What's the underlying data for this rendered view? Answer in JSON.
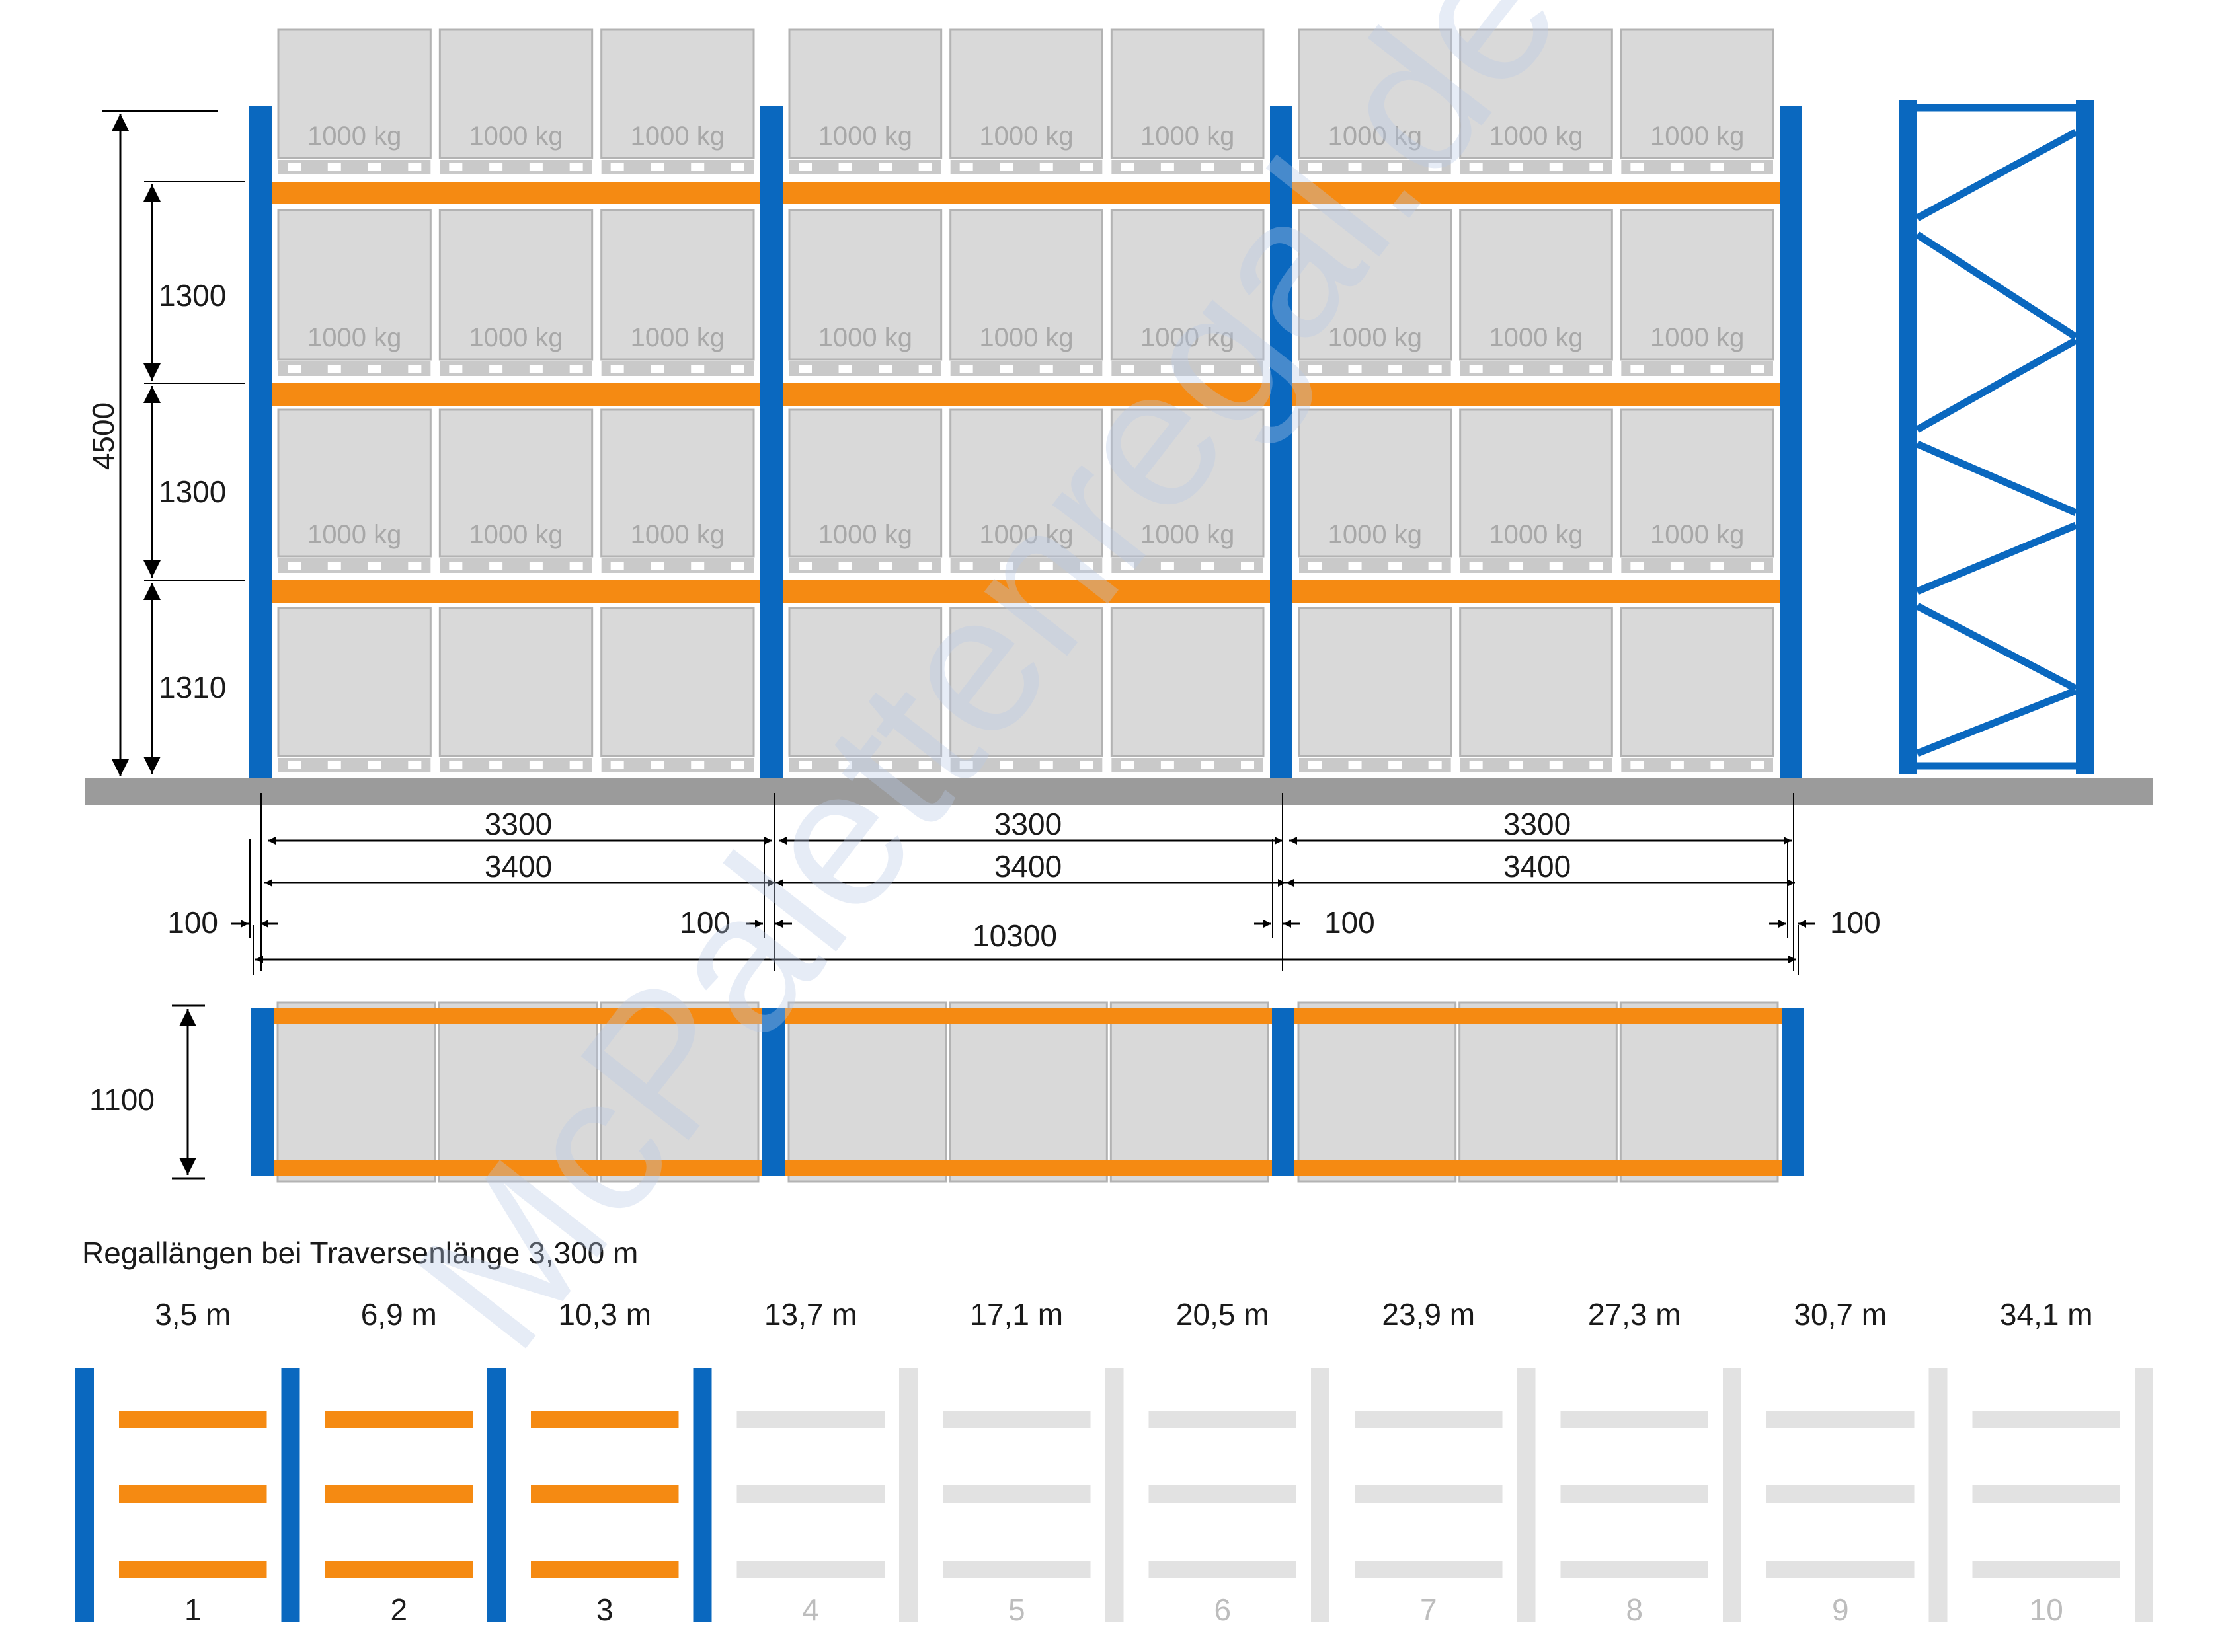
{
  "colors": {
    "upright": "#0a68bf",
    "beam": "#f58a12",
    "pallet": "#d9d9d9",
    "pallet_border": "#b3b3b3",
    "floor": "#9b9b9b",
    "inactive": "#e2e2e2"
  },
  "watermark": "McPalettenregal.de",
  "load_label": "1000 kg",
  "elevation": {
    "total_height": "4500",
    "level_heights": [
      "1300",
      "1300",
      "1310"
    ],
    "beam_lengths": [
      "3300",
      "3300",
      "3300"
    ],
    "bay_widths": [
      "3400",
      "3400",
      "3400"
    ],
    "upright_widths": [
      "100",
      "100",
      "100",
      "100"
    ],
    "total_length": "10300"
  },
  "plan": {
    "depth": "1100"
  },
  "lengths_section": {
    "title": "Regallängen bei Traversenlänge 3,300 m",
    "items": [
      {
        "length": "3,5 m",
        "number": "1",
        "active": true
      },
      {
        "length": "6,9 m",
        "number": "2",
        "active": true
      },
      {
        "length": "10,3 m",
        "number": "3",
        "active": true
      },
      {
        "length": "13,7 m",
        "number": "4",
        "active": false
      },
      {
        "length": "17,1 m",
        "number": "5",
        "active": false
      },
      {
        "length": "20,5 m",
        "number": "6",
        "active": false
      },
      {
        "length": "23,9 m",
        "number": "7",
        "active": false
      },
      {
        "length": "27,3 m",
        "number": "8",
        "active": false
      },
      {
        "length": "30,7 m",
        "number": "9",
        "active": false
      },
      {
        "length": "34,1 m",
        "number": "10",
        "active": false
      }
    ]
  }
}
